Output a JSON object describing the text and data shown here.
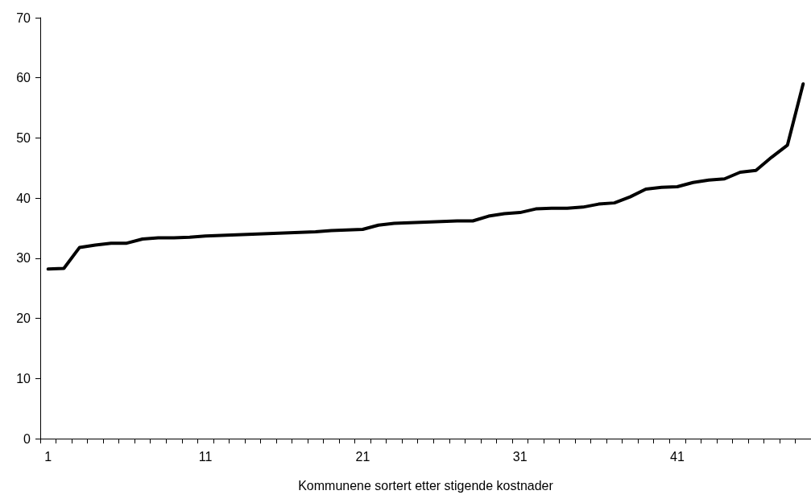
{
  "chart_data": {
    "type": "line",
    "xlabel": "Kommunene sortert etter stigende kostnader",
    "categories": [
      "1",
      null,
      null,
      null,
      null,
      null,
      null,
      null,
      null,
      null,
      "11",
      null,
      null,
      null,
      null,
      null,
      null,
      null,
      null,
      null,
      "21",
      null,
      null,
      null,
      null,
      null,
      null,
      null,
      null,
      null,
      "31",
      null,
      null,
      null,
      null,
      null,
      null,
      null,
      null,
      null,
      "41",
      null,
      null,
      null,
      null,
      null,
      null,
      null,
      null
    ],
    "series": [
      {
        "color": "#000000",
        "values": [
          28.2,
          28.3,
          31.8,
          32.2,
          32.5,
          32.5,
          33.2,
          33.4,
          33.4,
          33.5,
          33.7,
          33.8,
          33.9,
          34.0,
          34.1,
          34.2,
          34.3,
          34.4,
          34.6,
          34.7,
          34.8,
          35.5,
          35.8,
          35.9,
          36.0,
          36.1,
          36.2,
          36.2,
          37.0,
          37.4,
          37.6,
          38.2,
          38.3,
          38.3,
          38.5,
          39.0,
          39.2,
          40.2,
          41.5,
          41.8,
          41.9,
          42.6,
          43.0,
          43.2,
          44.3,
          44.6,
          46.8,
          48.8,
          59
        ]
      }
    ],
    "ylim": [
      0,
      70
    ],
    "yticks": [
      0,
      10,
      20,
      30,
      40,
      50,
      60,
      70
    ],
    "grid": false,
    "marker": "none",
    "line_style": "solid"
  }
}
